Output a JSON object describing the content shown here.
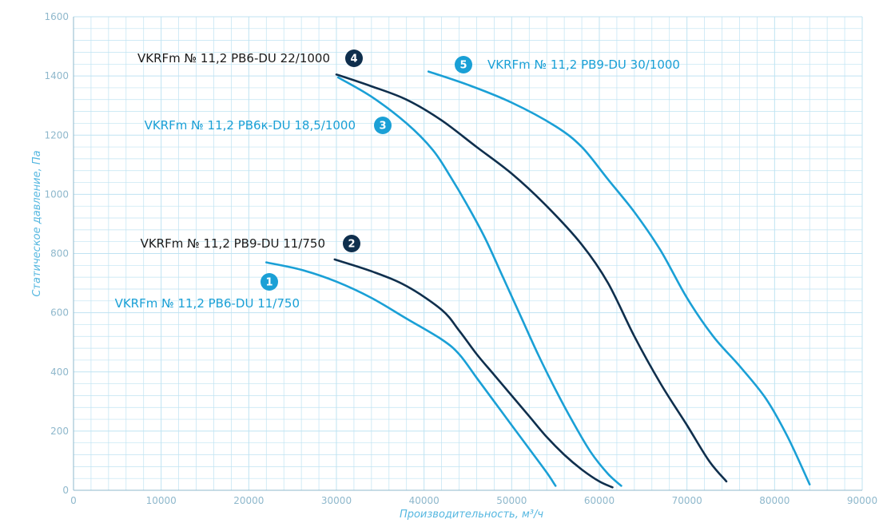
{
  "chart_data": {
    "type": "line",
    "title": "",
    "xlabel": "Производительность, м³/ч",
    "ylabel": "Статическое давление, Па",
    "xlim": [
      0,
      90000
    ],
    "ylim": [
      0,
      1600
    ],
    "x_ticks": [
      "0",
      "10000",
      "20000",
      "30000",
      "40000",
      "50000",
      "60000",
      "70000",
      "80000",
      "90000"
    ],
    "y_ticks": [
      "0",
      "200",
      "400",
      "600",
      "800",
      "1000",
      "1200",
      "1400",
      "1600"
    ],
    "grid": true,
    "colors": {
      "light": "#1aa0d6",
      "dark": "#0f2f4d",
      "grid": "#bfe3f2",
      "axis": "#8fb8cc"
    },
    "series": [
      {
        "name": "VKRFm № 11,2 PB6-DU 11/750",
        "badge": "1",
        "color": "#1aa0d6",
        "points": [
          [
            22000,
            770
          ],
          [
            26000,
            745
          ],
          [
            30000,
            705
          ],
          [
            34000,
            650
          ],
          [
            38000,
            580
          ],
          [
            42000,
            510
          ],
          [
            44000,
            460
          ],
          [
            46000,
            380
          ],
          [
            48000,
            300
          ],
          [
            50000,
            220
          ],
          [
            52000,
            140
          ],
          [
            54000,
            60
          ],
          [
            55000,
            15
          ]
        ]
      },
      {
        "name": "VKRFm № 11,2 PB9-DU 11/750",
        "badge": "2",
        "color": "#0f2f4d",
        "points": [
          [
            29800,
            780
          ],
          [
            34000,
            740
          ],
          [
            38000,
            690
          ],
          [
            42000,
            610
          ],
          [
            44000,
            540
          ],
          [
            46000,
            460
          ],
          [
            48000,
            390
          ],
          [
            50000,
            320
          ],
          [
            52000,
            250
          ],
          [
            54000,
            180
          ],
          [
            56000,
            120
          ],
          [
            58000,
            70
          ],
          [
            60000,
            30
          ],
          [
            61500,
            10
          ]
        ]
      },
      {
        "name": "VKRFm № 11,2 PB6к-DU 18,5/1000",
        "badge": "3",
        "color": "#1aa0d6",
        "points": [
          [
            30200,
            1395
          ],
          [
            34000,
            1330
          ],
          [
            38000,
            1240
          ],
          [
            41000,
            1150
          ],
          [
            43000,
            1060
          ],
          [
            45000,
            960
          ],
          [
            47000,
            850
          ],
          [
            49000,
            720
          ],
          [
            51000,
            590
          ],
          [
            53000,
            460
          ],
          [
            55000,
            340
          ],
          [
            57000,
            230
          ],
          [
            59000,
            130
          ],
          [
            61000,
            55
          ],
          [
            62500,
            15
          ]
        ]
      },
      {
        "name": "VKRFm № 11,2 PB6-DU 22/1000",
        "badge": "4",
        "color": "#0f2f4d",
        "points": [
          [
            30000,
            1405
          ],
          [
            34000,
            1365
          ],
          [
            38000,
            1320
          ],
          [
            42000,
            1250
          ],
          [
            46000,
            1160
          ],
          [
            50000,
            1070
          ],
          [
            54000,
            960
          ],
          [
            58000,
            830
          ],
          [
            61000,
            700
          ],
          [
            64000,
            520
          ],
          [
            67000,
            360
          ],
          [
            70000,
            220
          ],
          [
            72500,
            100
          ],
          [
            74500,
            30
          ]
        ]
      },
      {
        "name": "VKRFm № 11,2 PB9-DU 30/1000",
        "badge": "5",
        "color": "#1aa0d6",
        "points": [
          [
            40500,
            1415
          ],
          [
            45000,
            1370
          ],
          [
            50000,
            1310
          ],
          [
            55000,
            1230
          ],
          [
            58000,
            1160
          ],
          [
            61000,
            1050
          ],
          [
            64000,
            940
          ],
          [
            67000,
            810
          ],
          [
            70000,
            650
          ],
          [
            73000,
            520
          ],
          [
            76000,
            420
          ],
          [
            79000,
            310
          ],
          [
            81500,
            180
          ],
          [
            84000,
            20
          ]
        ]
      }
    ]
  }
}
